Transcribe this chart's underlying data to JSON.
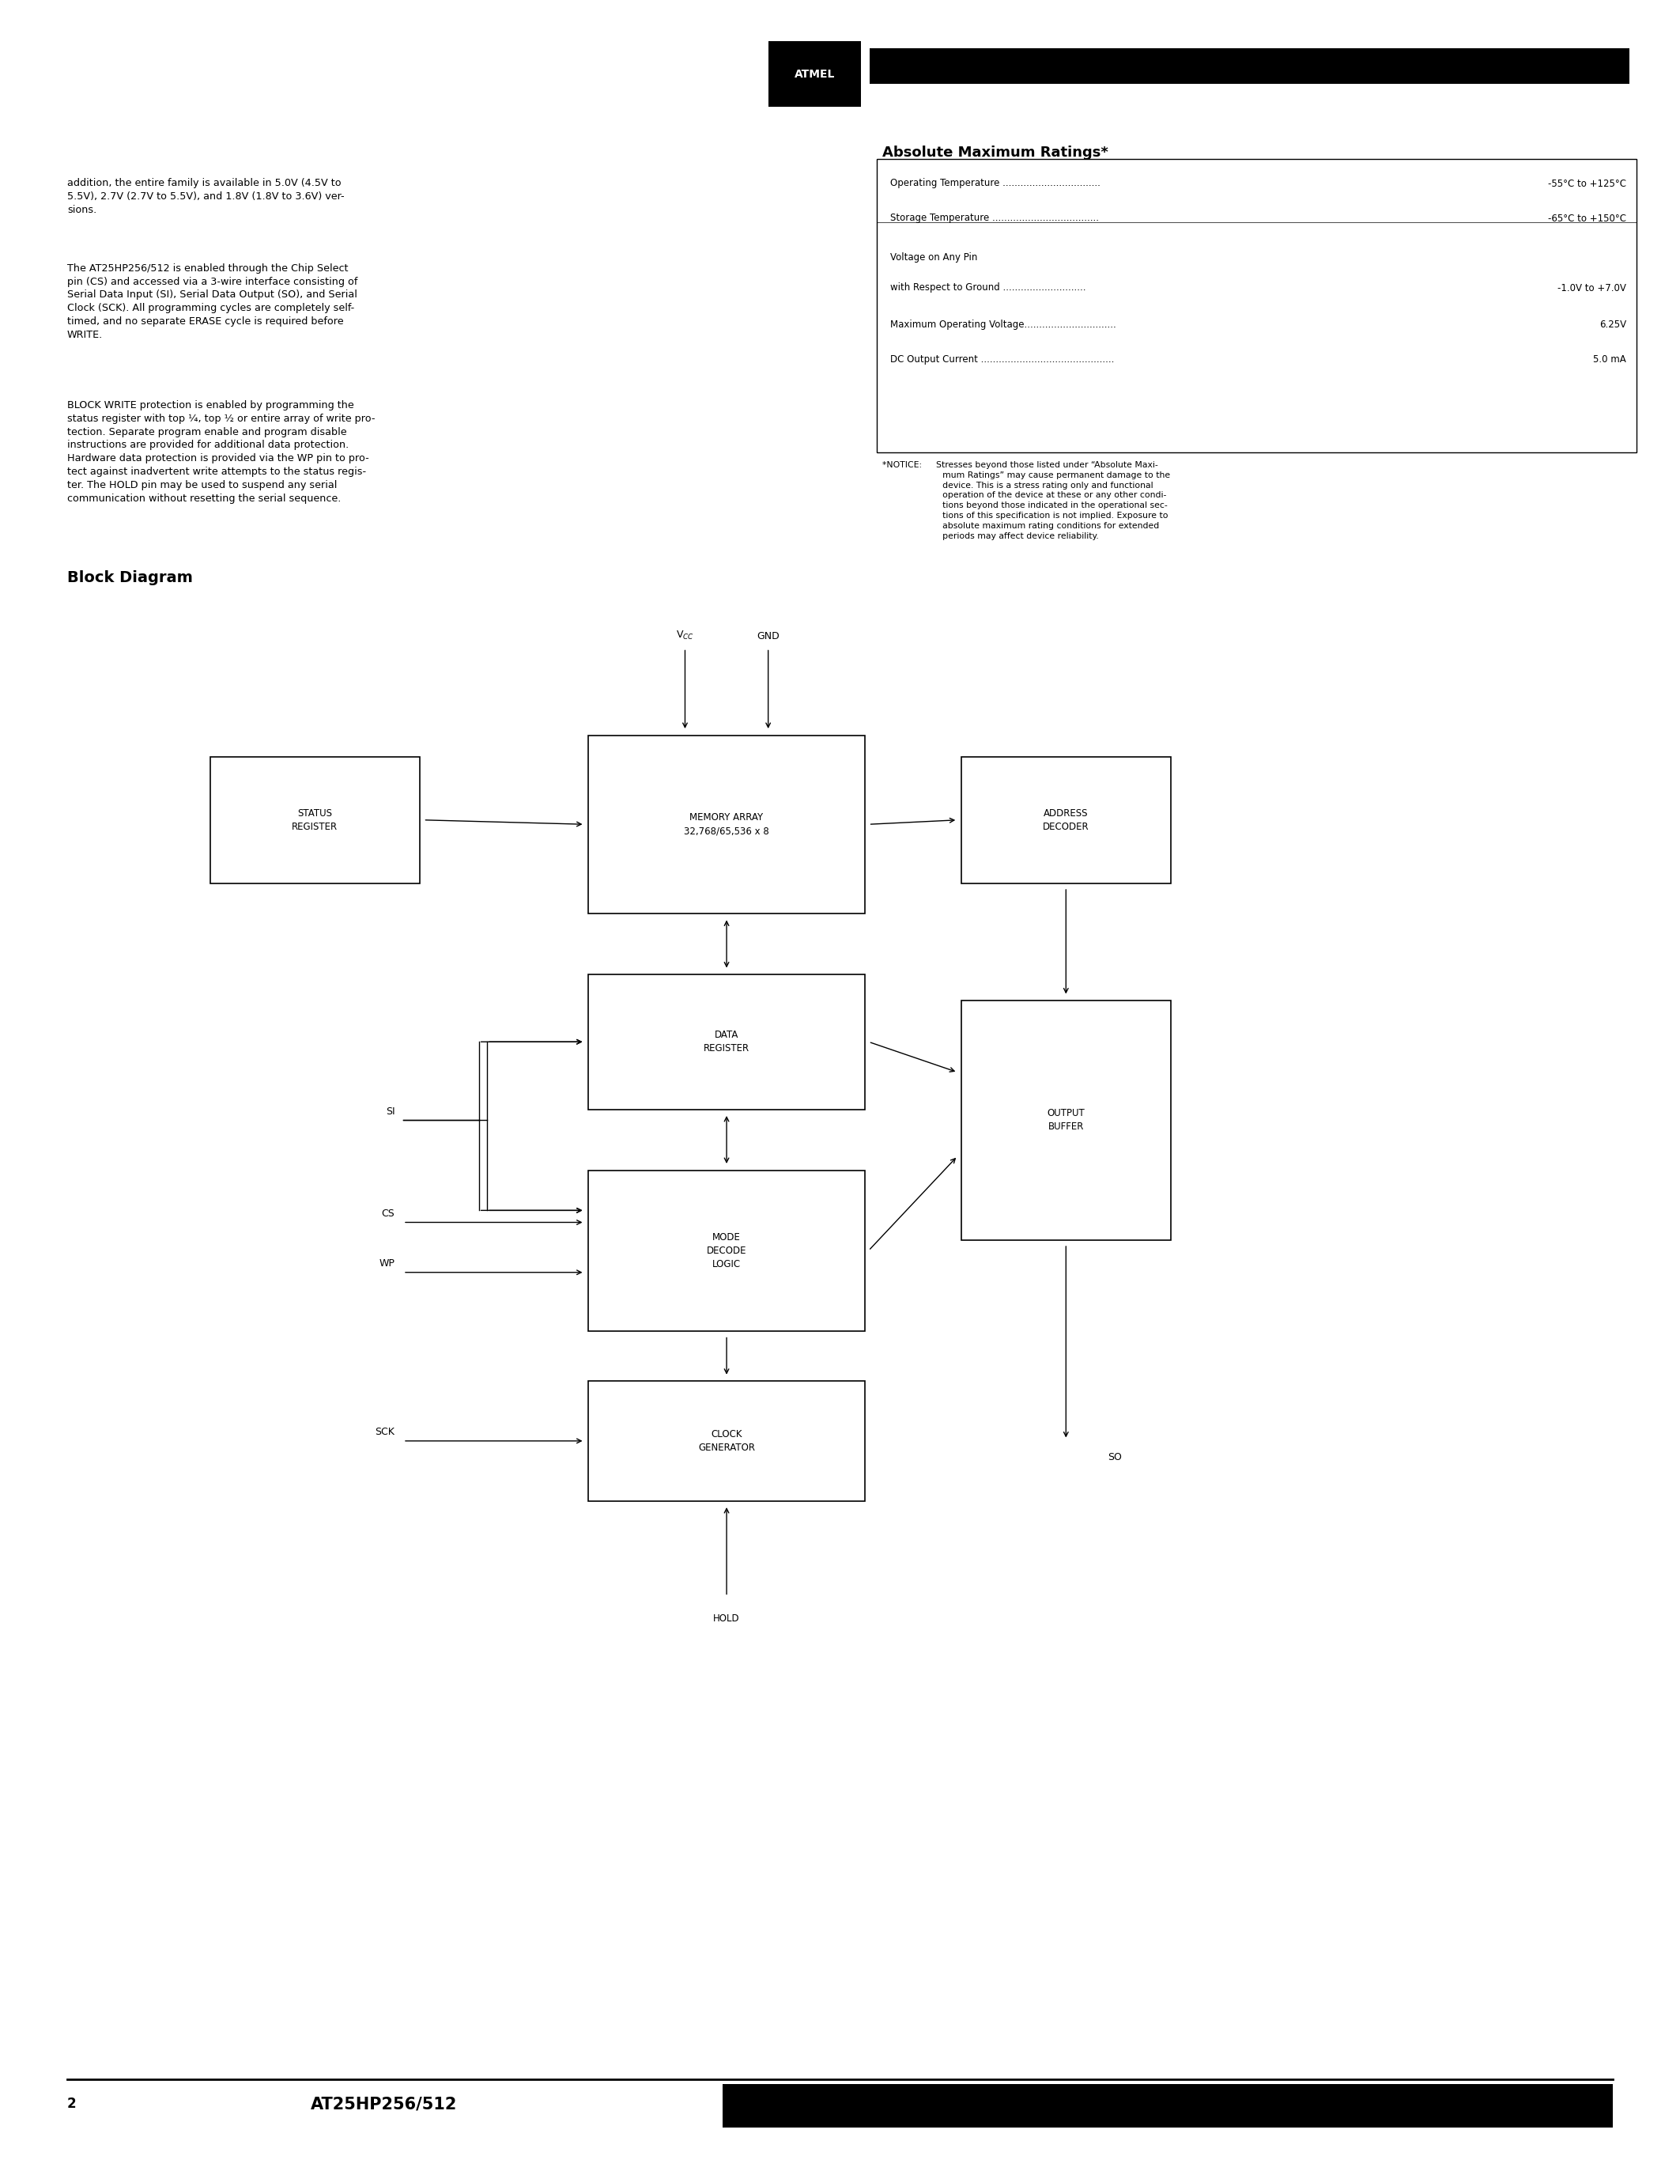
{
  "bg_color": "#ffffff",
  "text_color": "#000000",
  "title_text": "AT25HP256/512",
  "page_number": "2",
  "p1": "addition, the entire family is available in 5.0V (4.5V to\n5.5V), 2.7V (2.7V to 5.5V), and 1.8V (1.8V to 3.6V) ver-\nsions.",
  "p2": "The AT25HP256/512 is enabled through the Chip Select\npin (CS) and accessed via a 3-wire interface consisting of\nSerial Data Input (SI), Serial Data Output (SO), and Serial\nClock (SCK). All programming cycles are completely self-\ntimed, and no separate ERASE cycle is required before\nWRITE.",
  "p3": "BLOCK WRITE protection is enabled by programming the\nstatus register with top ¼, top ½ or entire array of write pro-\ntection. Separate program enable and program disable\ninstructions are provided for additional data protection.\nHardware data protection is provided via the WP pin to pro-\ntect against inadvertent write attempts to the status regis-\nter. The HOLD pin may be used to suspend any serial\ncommunication without resetting the serial sequence.",
  "abs_max_title": "Absolute Maximum Ratings*",
  "ratings": [
    {
      "label": "Operating Temperature .................................",
      "value": "-55°C to +125°C"
    },
    {
      "label": "Storage Temperature ....................................",
      "value": "-65°C to +150°C"
    },
    {
      "label": "Voltage on Any Pin",
      "value": ""
    },
    {
      "label": "with Respect to Ground ............................",
      "value": "-1.0V to +7.0V"
    },
    {
      "label": "Maximum Operating Voltage...............................",
      "value": "6.25V"
    },
    {
      "label": "DC Output Current .............................................",
      "value": "5.0 mA"
    }
  ],
  "notice": "*NOTICE:   Stresses beyond those listed under “Absolute Maxi-\n       mum Ratings” may cause permanent damage to the\n       device. This is a stress rating only and functional\n       operation of the device at these or any other condi-\n       tions beyond those indicated in the operational sec-\n       tions of this specification is not implied. Exposure to\n       absolute maximum rating conditions for extended\n       periods may affect device reliability.",
  "block_diagram_title": "Block Diagram",
  "footer_number": "2",
  "footer_title": "AT25HP256/512"
}
